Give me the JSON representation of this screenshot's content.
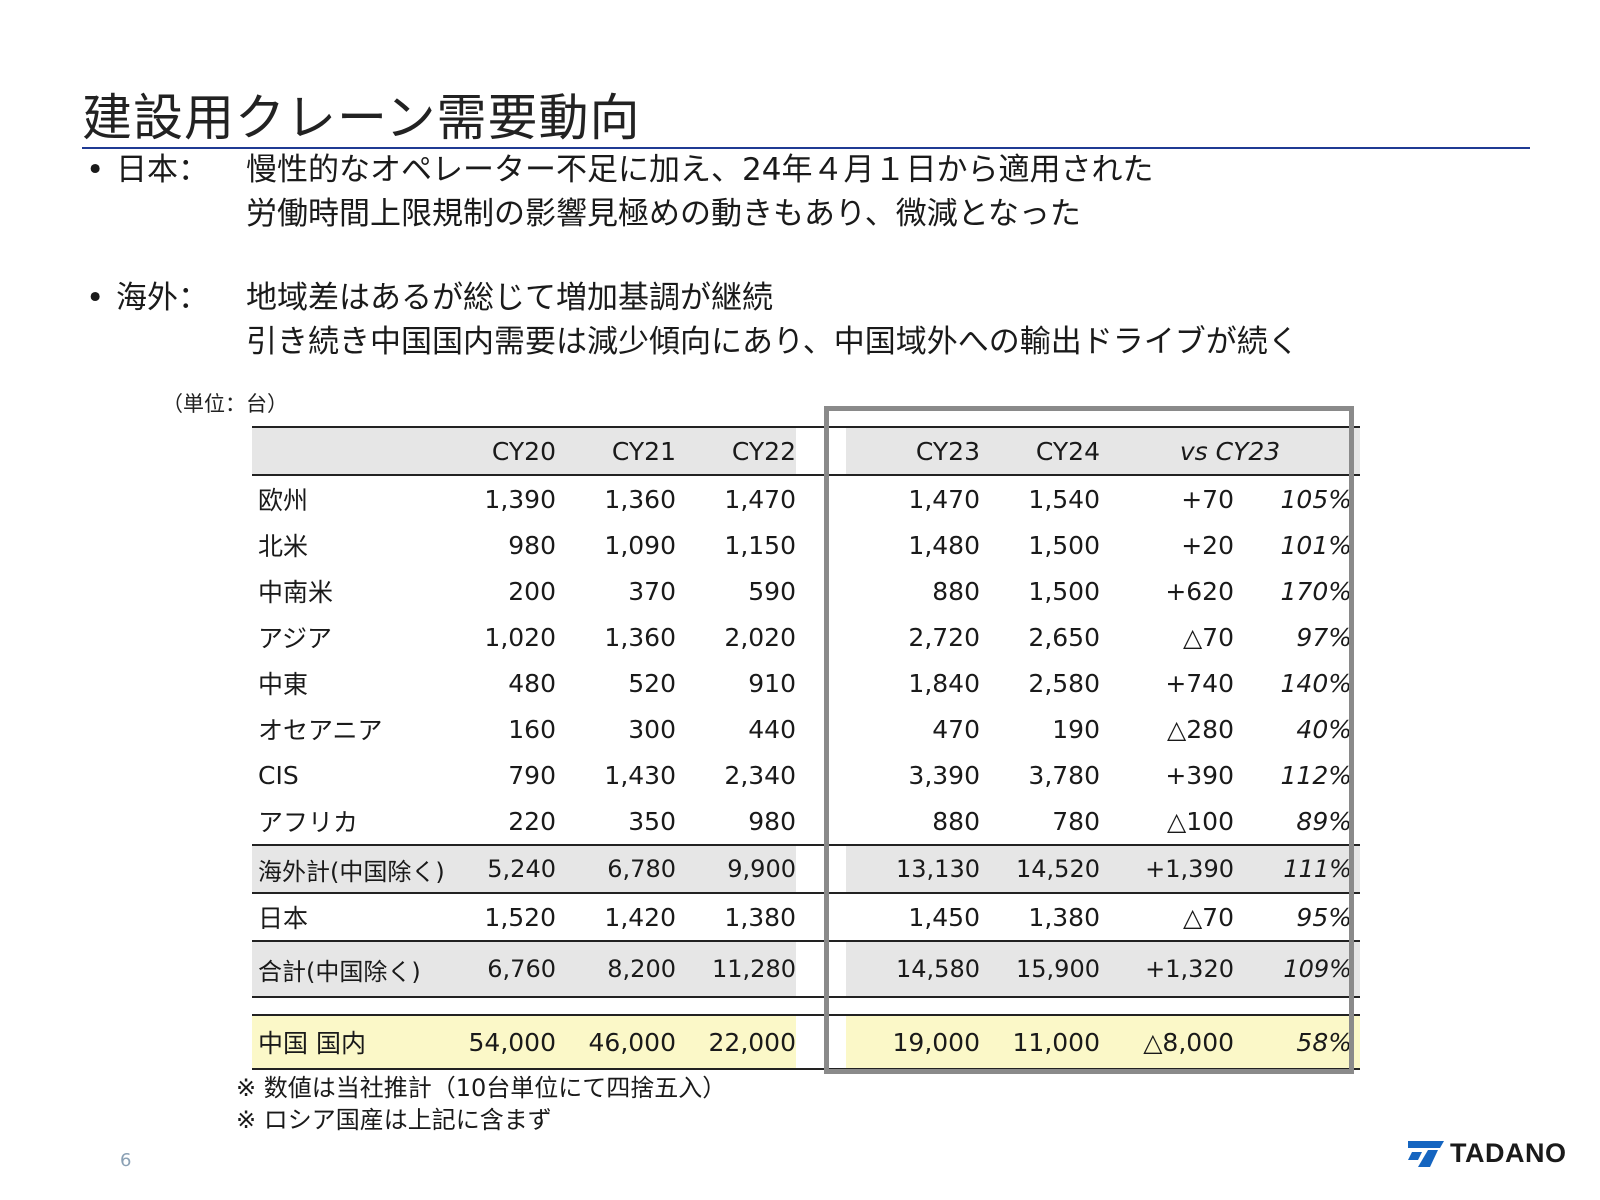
{
  "title": "建設用クレーン需要動向",
  "bullets": [
    {
      "marker": "•",
      "label": "日本：",
      "lines": [
        "慢性的なオペレーター不足に加え、24年４月１日から適用された",
        "労働時間上限規制の影響見極めの動きもあり、微減となった"
      ]
    },
    {
      "marker": "•",
      "label": "海外：",
      "lines": [
        "地域差はあるが総じて増加基調が継続",
        "引き続き中国国内需要は減少傾向にあり、中国域外への輸出ドライブが続く"
      ]
    }
  ],
  "unit_label": "（単位：台）",
  "table": {
    "headers": [
      "",
      "CY20",
      "CY21",
      "CY22",
      "CY23",
      "CY24",
      "vs CY23"
    ],
    "rows": [
      {
        "region": "欧州",
        "cy20": "1,390",
        "cy21": "1,360",
        "cy22": "1,470",
        "cy23": "1,470",
        "cy24": "1,540",
        "diff": "+70",
        "pct": "105%"
      },
      {
        "region": "北米",
        "cy20": "980",
        "cy21": "1,090",
        "cy22": "1,150",
        "cy23": "1,480",
        "cy24": "1,500",
        "diff": "+20",
        "pct": "101%"
      },
      {
        "region": "中南米",
        "cy20": "200",
        "cy21": "370",
        "cy22": "590",
        "cy23": "880",
        "cy24": "1,500",
        "diff": "+620",
        "pct": "170%"
      },
      {
        "region": "アジア",
        "cy20": "1,020",
        "cy21": "1,360",
        "cy22": "2,020",
        "cy23": "2,720",
        "cy24": "2,650",
        "diff": "△70",
        "pct": "97%"
      },
      {
        "region": "中東",
        "cy20": "480",
        "cy21": "520",
        "cy22": "910",
        "cy23": "1,840",
        "cy24": "2,580",
        "diff": "+740",
        "pct": "140%"
      },
      {
        "region": "オセアニア",
        "cy20": "160",
        "cy21": "300",
        "cy22": "440",
        "cy23": "470",
        "cy24": "190",
        "diff": "△280",
        "pct": "40%"
      },
      {
        "region": "CIS",
        "cy20": "790",
        "cy21": "1,430",
        "cy22": "2,340",
        "cy23": "3,390",
        "cy24": "3,780",
        "diff": "+390",
        "pct": "112%"
      },
      {
        "region": "アフリカ",
        "cy20": "220",
        "cy21": "350",
        "cy22": "980",
        "cy23": "880",
        "cy24": "780",
        "diff": "△100",
        "pct": "89%"
      }
    ],
    "overseas_total": {
      "region": "海外計(中国除く)",
      "cy20": "5,240",
      "cy21": "6,780",
      "cy22": "9,900",
      "cy23": "13,130",
      "cy24": "14,520",
      "diff": "+1,390",
      "pct": "111%"
    },
    "japan": {
      "region": "日本",
      "cy20": "1,520",
      "cy21": "1,420",
      "cy22": "1,380",
      "cy23": "1,450",
      "cy24": "1,380",
      "diff": "△70",
      "pct": "95%"
    },
    "grand_total": {
      "region": "合計(中国除く)",
      "cy20": "6,760",
      "cy21": "8,200",
      "cy22": "11,280",
      "cy23": "14,580",
      "cy24": "15,900",
      "diff": "+1,320",
      "pct": "109%"
    },
    "china": {
      "region": "中国 国内",
      "cy20": "54,000",
      "cy21": "46,000",
      "cy22": "22,000",
      "cy23": "19,000",
      "cy24": "11,000",
      "diff": "△8,000",
      "pct": "58%"
    }
  },
  "notes": [
    "※ 数値は当社推計（10台単位にて四捨五入）",
    "※ ロシア国産は上記に含まず"
  ],
  "page_number": "6",
  "logo": {
    "text": "TADANO",
    "icon": "tadano-mark-icon",
    "color": "#1565c0"
  },
  "colors": {
    "rule": "#1f3a93",
    "header_bg": "#e6e6e6",
    "china_bg": "#fbf8c8",
    "box_border": "#8a8a8a"
  }
}
